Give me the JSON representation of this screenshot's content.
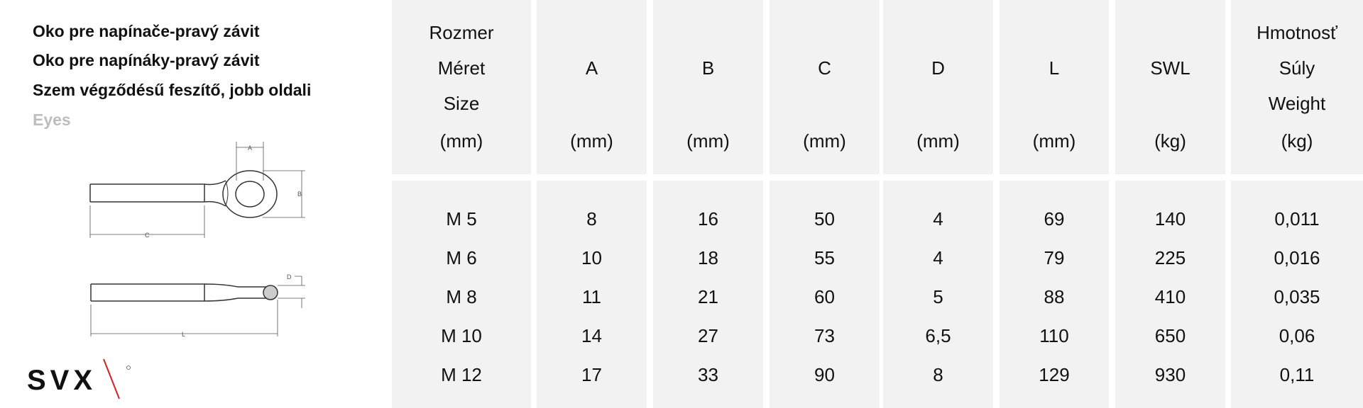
{
  "titles": [
    "Oko pre napínače-pravý závit",
    "Oko pre napínáky-pravý závit",
    "Szem végződésű feszítő, jobb oldali",
    "Eyes"
  ],
  "diagram_labels": {
    "A": "A",
    "B": "B",
    "C": "C",
    "D": "D",
    "L": "L"
  },
  "logo": "SVX",
  "colors": {
    "cell_bg": "#f2f2f2",
    "logo_slash": "#d42020",
    "subtitle_gray": "#bdbdbd"
  },
  "table": {
    "columns": [
      {
        "lines": [
          "Rozmer",
          "Méret",
          "Size",
          "(mm)"
        ]
      },
      {
        "lines": [
          "",
          "A",
          "",
          "(mm)"
        ]
      },
      {
        "lines": [
          "",
          "B",
          "",
          "(mm)"
        ]
      },
      {
        "lines": [
          "",
          "C",
          "",
          "(mm)"
        ]
      },
      {
        "lines": [
          "",
          "D",
          "",
          "(mm)"
        ]
      },
      {
        "lines": [
          "",
          "L",
          "",
          "(mm)"
        ]
      },
      {
        "lines": [
          "",
          "SWL",
          "",
          "(kg)"
        ]
      },
      {
        "lines": [
          "Hmotnosť",
          "Súly",
          "Weight",
          "(kg)"
        ]
      }
    ],
    "rows": [
      [
        "M 5",
        "8",
        "16",
        "50",
        "4",
        "69",
        "140",
        "0,011"
      ],
      [
        "M 6",
        "10",
        "18",
        "55",
        "4",
        "79",
        "225",
        "0,016"
      ],
      [
        "M 8",
        "11",
        "21",
        "60",
        "5",
        "88",
        "410",
        "0,035"
      ],
      [
        "M 10",
        "14",
        "27",
        "73",
        "6,5",
        "110",
        "650",
        "0,06"
      ],
      [
        "M 12",
        "17",
        "33",
        "90",
        "8",
        "129",
        "930",
        "0,11"
      ]
    ]
  }
}
